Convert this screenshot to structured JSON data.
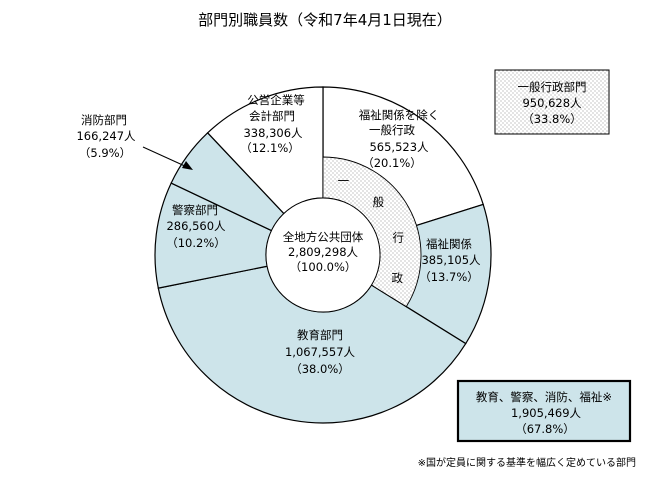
{
  "chart_data": {
    "type": "pie",
    "title": "部門別職員数（令和7年4月1日現在）",
    "center": {
      "name": "全地方公共団体",
      "value": "2,809,298人",
      "pct": "（100.0%）"
    },
    "slices": [
      {
        "key": "welfare-exc",
        "name": [
          "福祉関係を除く",
          "一般行政"
        ],
        "value_label": "565,523人",
        "pct_label": "（20.1%）",
        "value": 565523,
        "pct": 20.1,
        "color": "#ffffff"
      },
      {
        "key": "welfare",
        "name": [
          "福祉関係"
        ],
        "value_label": "385,105人",
        "pct_label": "（13.7%）",
        "value": 385105,
        "pct": 13.7,
        "color": "#cde4ea"
      },
      {
        "key": "education",
        "name": [
          "教育部門"
        ],
        "value_label": "1,067,557人",
        "pct_label": "（38.0%）",
        "value": 1067557,
        "pct": 38.0,
        "color": "#cde4ea"
      },
      {
        "key": "police",
        "name": [
          "警察部門"
        ],
        "value_label": "286,560人",
        "pct_label": "（10.2%）",
        "value": 286560,
        "pct": 10.2,
        "color": "#cde4ea"
      },
      {
        "key": "fire",
        "name": [
          "消防部門"
        ],
        "value_label": "166,247人",
        "pct_label": "（5.9%）",
        "value": 166247,
        "pct": 5.9,
        "color": "#cde4ea"
      },
      {
        "key": "enterprise",
        "name": [
          "公営企業等",
          "会計部門"
        ],
        "value_label": "338,306人",
        "pct_label": "（12.1%）",
        "value": 338306,
        "pct": 12.1,
        "color": "#ffffff"
      }
    ],
    "inner_group": {
      "name": [
        "一",
        "般",
        "行",
        "政"
      ],
      "covers": [
        "welfare-exc",
        "welfare"
      ]
    },
    "legend_general": {
      "name": "一般行政部門",
      "value": "950,628人",
      "pct": "（33.8%）"
    },
    "legend_special": {
      "name": "教育、警察、消防、福祉※",
      "value": "1,905,469人",
      "pct": "（67.8%）"
    },
    "footnote": "※国が定員に関する基準を幅広く定めている部門"
  }
}
